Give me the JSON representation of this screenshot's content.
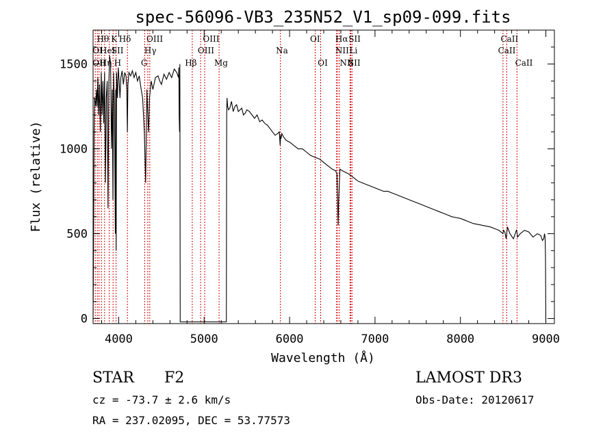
{
  "chart_data": {
    "type": "line",
    "title": "spec-56096-VB3_235N52_V1_sp09-099.fits",
    "xlabel": "Wavelength (Å)",
    "ylabel": "Flux (relative)",
    "xlim": [
      3700,
      9100
    ],
    "ylim": [
      -30,
      1700
    ],
    "xticks": [
      4000,
      5000,
      6000,
      7000,
      8000,
      9000
    ],
    "xtick_labels": [
      "4000",
      "5000",
      "6000",
      "7000",
      "8000",
      "9000"
    ],
    "yticks": [
      0,
      500,
      1000,
      1500
    ],
    "ytick_labels": [
      "0",
      "500",
      "1000",
      "1500"
    ],
    "series": [
      {
        "name": "flux",
        "x": [
          3700,
          3705,
          3712,
          3718,
          3725,
          3732,
          3740,
          3748,
          3755,
          3765,
          3775,
          3785,
          3795,
          3805,
          3815,
          3825,
          3835,
          3845,
          3855,
          3865,
          3875,
          3885,
          3895,
          3905,
          3915,
          3925,
          3932,
          3940,
          3950,
          3960,
          3965,
          3970,
          3975,
          3985,
          3995,
          4005,
          4015,
          4025,
          4040,
          4055,
          4070,
          4085,
          4095,
          4101,
          4108,
          4120,
          4140,
          4160,
          4180,
          4200,
          4220,
          4240,
          4260,
          4280,
          4300,
          4315,
          4330,
          4340,
          4350,
          4360,
          4380,
          4400,
          4430,
          4460,
          4480,
          4500,
          4530,
          4560,
          4590,
          4620,
          4650,
          4680,
          4700,
          4705,
          4708,
          4712,
          4716,
          4720,
          5260,
          5264,
          5268,
          5275,
          5285,
          5300,
          5320,
          5340,
          5360,
          5380,
          5400,
          5420,
          5440,
          5460,
          5480,
          5500,
          5530,
          5560,
          5590,
          5620,
          5650,
          5680,
          5710,
          5740,
          5770,
          5800,
          5830,
          5860,
          5880,
          5890,
          5895,
          5900,
          5910,
          5930,
          5960,
          6000,
          6050,
          6100,
          6150,
          6200,
          6250,
          6300,
          6350,
          6400,
          6450,
          6500,
          6540,
          6555,
          6562,
          6568,
          6575,
          6590,
          6620,
          6660,
          6700,
          6750,
          6800,
          6850,
          6900,
          6950,
          7000,
          7050,
          7100,
          7150,
          7200,
          7250,
          7300,
          7350,
          7400,
          7450,
          7500,
          7550,
          7600,
          7650,
          7700,
          7750,
          7800,
          7850,
          7900,
          7950,
          8000,
          8050,
          8100,
          8150,
          8200,
          8250,
          8300,
          8350,
          8400,
          8450,
          8498,
          8505,
          8520,
          8535,
          8542,
          8550,
          8580,
          8620,
          8655,
          8662,
          8670,
          8700,
          8750,
          8800,
          8850,
          8900,
          8940,
          8960,
          8975,
          8985,
          8990,
          8993,
          8996,
          9000
        ],
        "y": [
          -20,
          400,
          1100,
          1300,
          1280,
          1250,
          1350,
          1250,
          1420,
          1200,
          1380,
          1100,
          1450,
          1200,
          1400,
          1150,
          1450,
          800,
          1300,
          1400,
          650,
          1400,
          1550,
          1500,
          1000,
          1350,
          700,
          1450,
          1250,
          500,
          1350,
          400,
          1450,
          1300,
          1480,
          1400,
          1300,
          1420,
          1460,
          1380,
          1450,
          1430,
          1350,
          1100,
          1380,
          1450,
          1430,
          1460,
          1420,
          1450,
          1400,
          1430,
          1360,
          1300,
          1100,
          800,
          1350,
          1200,
          1100,
          1300,
          1400,
          1350,
          1420,
          1430,
          1400,
          1380,
          1440,
          1410,
          1450,
          1420,
          1470,
          1450,
          1420,
          1480,
          1200,
          1100,
          1500,
          -20,
          -20,
          1200,
          1300,
          1250,
          1230,
          1240,
          1280,
          1220,
          1250,
          1260,
          1220,
          1230,
          1240,
          1200,
          1210,
          1230,
          1220,
          1200,
          1180,
          1200,
          1160,
          1170,
          1150,
          1140,
          1120,
          1100,
          1080,
          1090,
          1100,
          1020,
          1080,
          1060,
          1090,
          1070,
          1050,
          1040,
          1020,
          1000,
          1000,
          980,
          960,
          950,
          940,
          920,
          900,
          880,
          870,
          850,
          700,
          550,
          700,
          880,
          870,
          860,
          850,
          830,
          810,
          800,
          790,
          780,
          770,
          760,
          750,
          750,
          740,
          730,
          720,
          710,
          700,
          690,
          680,
          670,
          660,
          650,
          640,
          630,
          620,
          610,
          600,
          595,
          590,
          580,
          570,
          560,
          555,
          550,
          545,
          540,
          530,
          520,
          500,
          520,
          510,
          470,
          500,
          540,
          500,
          470,
          520,
          510,
          480,
          500,
          520,
          510,
          480,
          500,
          490,
          460,
          470,
          500,
          480,
          450,
          350,
          -20
        ]
      }
    ],
    "reference_lines": {
      "color": "#d00000",
      "x": [
        3726,
        3750,
        3770,
        3798,
        3835,
        3889,
        3934,
        3969,
        4102,
        4304,
        4341,
        4363,
        4861,
        4959,
        5007,
        5175,
        5893,
        6300,
        6364,
        6548,
        6563,
        6583,
        6708,
        6717,
        6731,
        8498,
        8542,
        8662
      ]
    },
    "line_labels": [
      {
        "text": "Hθ",
        "x": 3745,
        "row": 1
      },
      {
        "text": "K",
        "x": 3910,
        "row": 1
      },
      {
        "text": "Hδ",
        "x": 4002,
        "row": 1
      },
      {
        "text": "OIII",
        "x": 4325,
        "row": 1
      },
      {
        "text": "OIII",
        "x": 4985,
        "row": 1
      },
      {
        "text": "OI",
        "x": 6240,
        "row": 1
      },
      {
        "text": "Hα",
        "x": 6535,
        "row": 1
      },
      {
        "text": "SII",
        "x": 6690,
        "row": 1
      },
      {
        "text": "CaII",
        "x": 8470,
        "row": 1
      },
      {
        "text": "OI",
        "x": 3694,
        "row": 2
      },
      {
        "text": "HeI",
        "x": 3780,
        "row": 2
      },
      {
        "text": "SII",
        "x": 3915,
        "row": 2
      },
      {
        "text": "Hγ",
        "x": 4300,
        "row": 2
      },
      {
        "text": "OIII",
        "x": 4925,
        "row": 2
      },
      {
        "text": "Na",
        "x": 5840,
        "row": 2
      },
      {
        "text": "NII",
        "x": 6535,
        "row": 2
      },
      {
        "text": "Li",
        "x": 6700,
        "row": 2
      },
      {
        "text": "CaII",
        "x": 8440,
        "row": 2
      },
      {
        "text": "OII",
        "x": 3694,
        "row": 3
      },
      {
        "text": "Hη",
        "x": 3778,
        "row": 3
      },
      {
        "text": "H",
        "x": 3945,
        "row": 3
      },
      {
        "text": "G",
        "x": 4260,
        "row": 3
      },
      {
        "text": "Hβ",
        "x": 4775,
        "row": 3
      },
      {
        "text": "Mg",
        "x": 5118,
        "row": 3
      },
      {
        "text": "OI",
        "x": 6330,
        "row": 3
      },
      {
        "text": "NII",
        "x": 6588,
        "row": 3
      },
      {
        "text": "SII",
        "x": 6688,
        "row": 3
      },
      {
        "text": "CaII",
        "x": 8640,
        "row": 3
      }
    ]
  },
  "footer": {
    "object_class": "STAR",
    "subclass": "F2",
    "survey": "LAMOST DR3",
    "redshift": "cz = -73.7 ± 2.6 km/s",
    "obs_date": "Obs-Date: 20120617",
    "coords": "RA = 237.02095, DEC =  53.77573"
  }
}
